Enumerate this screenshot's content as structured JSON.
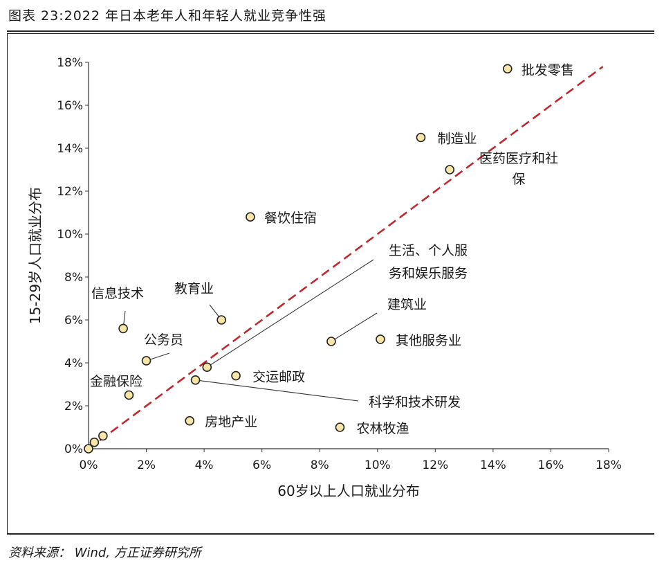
{
  "header": {
    "title": "图表 23:2022 年日本老年人和年轻人就业竞争性强"
  },
  "footer": {
    "source": "资料来源： Wind, 方正证券研究所"
  },
  "colors": {
    "point_fill": "#f7e6a8",
    "point_stroke": "#222222",
    "diagonal": "#c0282d"
  },
  "chart_data": {
    "type": "scatter",
    "xlabel": "60岁以上人口就业分布",
    "ylabel": "15-29岁人口就业分布",
    "xlim": [
      0,
      18
    ],
    "ylim": [
      0,
      18
    ],
    "xticks": [
      "0%",
      "2%",
      "4%",
      "6%",
      "8%",
      "10%",
      "12%",
      "14%",
      "16%",
      "18%"
    ],
    "yticks": [
      "0%",
      "2%",
      "4%",
      "6%",
      "8%",
      "10%",
      "12%",
      "14%",
      "16%",
      "18%"
    ],
    "grid": false,
    "reference_line": "y = x",
    "points": [
      {
        "label": "批发零售",
        "x": 14.5,
        "y": 17.7
      },
      {
        "label": "制造业",
        "x": 11.5,
        "y": 14.5
      },
      {
        "label": "医药医疗和社保",
        "x": 12.5,
        "y": 13.0
      },
      {
        "label": "餐饮住宿",
        "x": 5.6,
        "y": 10.8
      },
      {
        "label": "生活、个人服务和娱乐服务",
        "x": 4.1,
        "y": 3.8
      },
      {
        "label": "建筑业",
        "x": 8.4,
        "y": 5.0
      },
      {
        "label": "其他服务业",
        "x": 10.1,
        "y": 5.1
      },
      {
        "label": "信息技术",
        "x": 1.2,
        "y": 5.6
      },
      {
        "label": "教育业",
        "x": 4.6,
        "y": 6.0
      },
      {
        "label": "公务员",
        "x": 2.0,
        "y": 4.1
      },
      {
        "label": "交运邮政",
        "x": 5.1,
        "y": 3.4
      },
      {
        "label": "金融保险",
        "x": 1.4,
        "y": 2.5
      },
      {
        "label": "科学和技术研发",
        "x": 3.7,
        "y": 3.2
      },
      {
        "label": "房地产业",
        "x": 3.5,
        "y": 1.3
      },
      {
        "label": "农林牧渔",
        "x": 8.7,
        "y": 1.0
      },
      {
        "label": "",
        "x": 0.0,
        "y": 0.0
      },
      {
        "label": "",
        "x": 0.2,
        "y": 0.3
      },
      {
        "label": "",
        "x": 0.5,
        "y": 0.6
      }
    ]
  }
}
